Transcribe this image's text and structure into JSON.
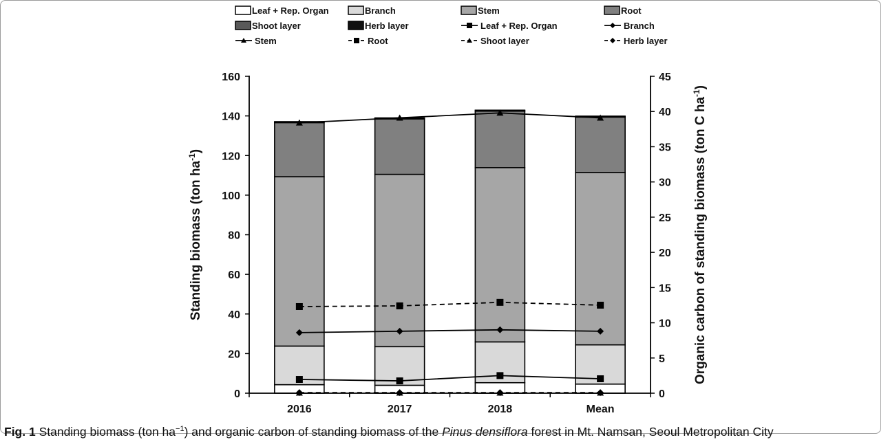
{
  "chart_data": {
    "type": "bar",
    "categories": [
      "2016",
      "2017",
      "2018",
      "Mean"
    ],
    "ylabel_parts": [
      "Standing biomass (ton ha",
      "-1",
      ")"
    ],
    "y2label_parts": [
      "Organic carbon of standing biomass (ton C ha",
      "-1",
      ")"
    ],
    "ylim": [
      0,
      160
    ],
    "y_ticks": [
      0,
      20,
      40,
      60,
      80,
      100,
      120,
      140,
      160
    ],
    "y2lim": [
      0,
      45
    ],
    "y2_ticks": [
      0,
      5,
      10,
      15,
      20,
      25,
      30,
      35,
      40,
      45
    ],
    "bar_series": [
      {
        "name": "Leaf + Rep. Organ",
        "color": "#ffffff",
        "values": [
          4.3,
          4.0,
          5.3,
          4.6
        ]
      },
      {
        "name": "Branch",
        "color": "#d9d9d9",
        "values": [
          19.5,
          19.5,
          20.6,
          19.8
        ]
      },
      {
        "name": "Stem",
        "color": "#a6a6a6",
        "values": [
          85.5,
          87.0,
          88.0,
          87.0
        ]
      },
      {
        "name": "Root",
        "color": "#808080",
        "values": [
          27.3,
          28.0,
          28.5,
          28.0
        ]
      },
      {
        "name": "Shoot layer",
        "color": "#595959",
        "values": [
          0.2,
          0.2,
          0.2,
          0.2
        ]
      },
      {
        "name": "Herb layer",
        "color": "#111111",
        "values": [
          0.3,
          0.3,
          0.3,
          0.3
        ]
      }
    ],
    "line_series": [
      {
        "name": "Leaf + Rep. Organ",
        "dash": false,
        "marker": "square",
        "values": [
          1.95,
          1.75,
          2.5,
          2.05
        ]
      },
      {
        "name": "Branch",
        "dash": false,
        "marker": "diamond",
        "values": [
          8.6,
          8.8,
          9.0,
          8.8
        ]
      },
      {
        "name": "Stem",
        "dash": false,
        "marker": "triangle",
        "values": [
          38.4,
          39.1,
          39.8,
          39.1
        ]
      },
      {
        "name": "Root",
        "dash": true,
        "marker": "square",
        "values": [
          12.3,
          12.4,
          12.9,
          12.5
        ]
      },
      {
        "name": "Shoot layer",
        "dash": true,
        "marker": "triangle",
        "values": [
          0.05,
          0.05,
          0.05,
          0.05
        ]
      },
      {
        "name": "Herb layer",
        "dash": true,
        "marker": "diamond",
        "values": [
          0.08,
          0.08,
          0.08,
          0.08
        ]
      }
    ],
    "legend_position": "top"
  },
  "caption": {
    "label": "Fig. 1",
    "text_before_unit": " Standing biomass (ton ha",
    "unit_sup": "−1",
    "text_middle": ") and organic carbon of standing biomass of the ",
    "species": "Pinus densiflora",
    "text_after": " forest in Mt. Namsan, Seoul Metropolitan City"
  }
}
